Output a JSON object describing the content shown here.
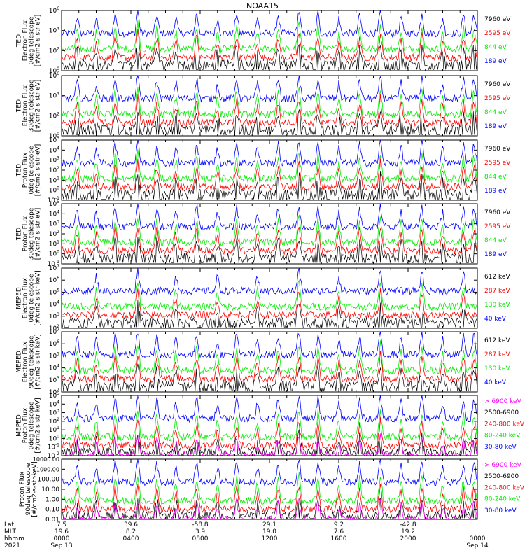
{
  "title": "NOAA15",
  "colors": {
    "black": "#000000",
    "blue": "#0000ff",
    "red": "#ff0000",
    "green": "#00ee00",
    "magenta": "#ff00ff"
  },
  "chart_data": [
    {
      "type": "line",
      "ylabel": [
        "TED",
        "Electron Flux",
        "0deg telescope",
        "[#/cm2-s-str-eV]"
      ],
      "yscale": "log",
      "ylim": [
        1,
        1000000
      ],
      "ytick_labels": [
        "10^0",
        "10^2",
        "10^4",
        "10^6"
      ],
      "series": [
        {
          "name": "7960 eV",
          "color": "black"
        },
        {
          "name": "2595 eV",
          "color": "red"
        },
        {
          "name": "844 eV",
          "color": "green"
        },
        {
          "name": "189 eV",
          "color": "blue"
        }
      ],
      "peak_hours": [
        0.9,
        2.0,
        3.1,
        4.4,
        5.5,
        6.6,
        7.8,
        9.0,
        10.1,
        11.3,
        12.5,
        13.7,
        14.8,
        16.0,
        17.2,
        18.4,
        19.6,
        20.8,
        22.0,
        23.2,
        23.8
      ]
    },
    {
      "type": "line",
      "ylabel": [
        "TED",
        "Electron Flux",
        "30deg telescope",
        "[#/cm2-s-str-eV]"
      ],
      "yscale": "log",
      "ylim": [
        1,
        1000000
      ],
      "ytick_labels": [
        "10^0",
        "10^2",
        "10^4",
        "10^6"
      ],
      "series": [
        {
          "name": "7960 eV",
          "color": "black"
        },
        {
          "name": "2595 eV",
          "color": "red"
        },
        {
          "name": "844 eV",
          "color": "green"
        },
        {
          "name": "189 eV",
          "color": "blue"
        }
      ],
      "peak_hours": [
        0.9,
        2.0,
        3.1,
        4.4,
        5.5,
        6.6,
        7.8,
        9.0,
        10.1,
        11.3,
        12.5,
        13.7,
        14.8,
        16.0,
        17.2,
        18.4,
        19.6,
        20.8,
        22.0,
        23.2,
        23.8
      ]
    },
    {
      "type": "line",
      "ylabel": [
        "TED",
        "Proton Flux",
        "0deg telescope",
        "[#/cm2-s-str-eV]"
      ],
      "yscale": "log",
      "ylim": [
        0.1,
        100000
      ],
      "ytick_labels": [
        "10^-1",
        "10^0",
        "10^1",
        "10^2",
        "10^3",
        "10^4",
        "10^5"
      ],
      "series": [
        {
          "name": "7960 eV",
          "color": "black"
        },
        {
          "name": "2595 eV",
          "color": "red"
        },
        {
          "name": "844 eV",
          "color": "green"
        },
        {
          "name": "189 eV",
          "color": "blue"
        }
      ],
      "peak_hours": [
        0.9,
        2.0,
        3.1,
        4.4,
        5.5,
        6.6,
        7.8,
        9.0,
        10.1,
        11.3,
        12.5,
        13.7,
        14.8,
        16.0,
        17.2,
        18.4,
        19.6,
        20.8,
        22.0,
        23.2,
        23.8
      ]
    },
    {
      "type": "line",
      "ylabel": [
        "TED",
        "Proton Flux",
        "30deg telescope",
        "[#/cm2-s-str-eV]"
      ],
      "yscale": "log",
      "ylim": [
        0.1,
        100000
      ],
      "ytick_labels": [
        "10^-1",
        "10^0",
        "10^1",
        "10^2",
        "10^3",
        "10^4",
        "10^5"
      ],
      "series": [
        {
          "name": "7960 eV",
          "color": "black"
        },
        {
          "name": "2595 eV",
          "color": "red"
        },
        {
          "name": "844 eV",
          "color": "green"
        },
        {
          "name": "189 eV",
          "color": "blue"
        }
      ],
      "peak_hours": [
        0.9,
        2.0,
        3.1,
        4.4,
        5.5,
        6.6,
        7.8,
        9.0,
        10.1,
        11.3,
        12.5,
        13.7,
        14.8,
        16.0,
        17.2,
        18.4,
        19.6,
        20.8,
        22.0,
        23.2,
        23.8
      ]
    },
    {
      "type": "line",
      "ylabel": [
        "MEPED",
        "Electron Flux",
        "0deg telescope",
        "[#/cm2-s-str-keV]"
      ],
      "yscale": "log",
      "ylim": [
        100,
        10000000
      ],
      "ytick_labels": [
        "10^2",
        "10^3",
        "10^4",
        "10^5",
        "10^6",
        "10^7"
      ],
      "series": [
        {
          "name": "612 keV",
          "color": "black"
        },
        {
          "name": "287 keV",
          "color": "red"
        },
        {
          "name": "130 keV",
          "color": "green"
        },
        {
          "name": "40 keV",
          "color": "blue"
        }
      ],
      "peak_hours": [
        2.0,
        4.4,
        6.6,
        9.0,
        11.3,
        13.7,
        16.0,
        18.4,
        20.8,
        23.2
      ]
    },
    {
      "type": "line",
      "ylabel": [
        "MEPED",
        "Electron Flux",
        "90deg telescope",
        "[#/cm2-s-str-keV]"
      ],
      "yscale": "log",
      "ylim": [
        100,
        10000000
      ],
      "ytick_labels": [
        "10^2",
        "10^3",
        "10^4",
        "10^5",
        "10^6",
        "10^7"
      ],
      "series": [
        {
          "name": "612 keV",
          "color": "black"
        },
        {
          "name": "287 keV",
          "color": "red"
        },
        {
          "name": "130 keV",
          "color": "green"
        },
        {
          "name": "40 keV",
          "color": "blue"
        }
      ],
      "peak_hours": [
        0.9,
        2.0,
        3.1,
        4.4,
        5.5,
        6.6,
        7.8,
        9.0,
        10.1,
        11.3,
        12.5,
        13.7,
        14.8,
        16.0,
        17.2,
        18.4,
        19.6,
        20.8,
        22.0,
        23.2,
        23.8
      ]
    },
    {
      "type": "line",
      "ylabel": [
        "MEPED",
        "Proton Flux",
        "0deg telescope",
        "[#/cm2-s-str-keV]"
      ],
      "yscale": "log",
      "ylim": [
        0.01,
        100000
      ],
      "ytick_labels": [
        "10^-2",
        "10^-1",
        "10^0",
        "10^1",
        "10^2",
        "10^3",
        "10^4",
        "10^5"
      ],
      "series": [
        {
          "name": "> 6900 keV",
          "color": "magenta"
        },
        {
          "name": "2500-6900",
          "color": "black"
        },
        {
          "name": "240-800 keV",
          "color": "red"
        },
        {
          "name": "80-240 keV",
          "color": "green"
        },
        {
          "name": "30-80 keV",
          "color": "blue"
        }
      ],
      "peak_hours": [
        0.9,
        2.0,
        3.1,
        4.4,
        5.5,
        6.6,
        7.8,
        9.0,
        10.1,
        11.3,
        12.5,
        13.7,
        14.8,
        16.0,
        17.2,
        18.4,
        19.6,
        20.8,
        22.0,
        23.2,
        23.8
      ]
    },
    {
      "type": "line",
      "ylabel": [
        "Proton Flux",
        "90deg telescope",
        "[#/cm2-s-str-keV]"
      ],
      "yscale": "log",
      "ylim": [
        0.01,
        10000
      ],
      "ytick_labels": [
        "0.01",
        "0.10",
        "1.00",
        "10.00",
        "100.00",
        "1000.00",
        "10000.00"
      ],
      "series": [
        {
          "name": "> 6900 keV",
          "color": "magenta"
        },
        {
          "name": "2500-6900",
          "color": "black"
        },
        {
          "name": "240-800 keV",
          "color": "red"
        },
        {
          "name": "80-240 keV",
          "color": "green"
        },
        {
          "name": "30-80 keV",
          "color": "blue"
        }
      ],
      "peak_hours": [
        0.9,
        2.0,
        3.1,
        4.4,
        5.5,
        6.6,
        7.8,
        9.0,
        10.1,
        11.3,
        12.5,
        13.7,
        14.8,
        16.0,
        17.2,
        18.4,
        19.6,
        20.8,
        22.0,
        23.2,
        23.8
      ]
    }
  ],
  "x_axis": {
    "row_labels": [
      "Lat",
      "MLT",
      "hhmm",
      "2021"
    ],
    "ticks": [
      {
        "hour": 0,
        "lat": "7.5",
        "mlt": "19.6",
        "hhmm": "0000",
        "date": "Sep 13"
      },
      {
        "hour": 4,
        "lat": "39.6",
        "mlt": "8.2",
        "hhmm": "0400",
        "date": ""
      },
      {
        "hour": 8,
        "lat": "-58.8",
        "mlt": "3.9",
        "hhmm": "0800",
        "date": ""
      },
      {
        "hour": 12,
        "lat": "29.1",
        "mlt": "19.0",
        "hhmm": "1200",
        "date": ""
      },
      {
        "hour": 16,
        "lat": "9.2",
        "mlt": "7.6",
        "hhmm": "1600",
        "date": ""
      },
      {
        "hour": 20,
        "lat": "-42.8",
        "mlt": "19.2",
        "hhmm": "2000",
        "date": ""
      },
      {
        "hour": 24,
        "lat": "",
        "mlt": "",
        "hhmm": "0000",
        "date": "Sep 14"
      }
    ],
    "range_hours": [
      0,
      24
    ]
  }
}
